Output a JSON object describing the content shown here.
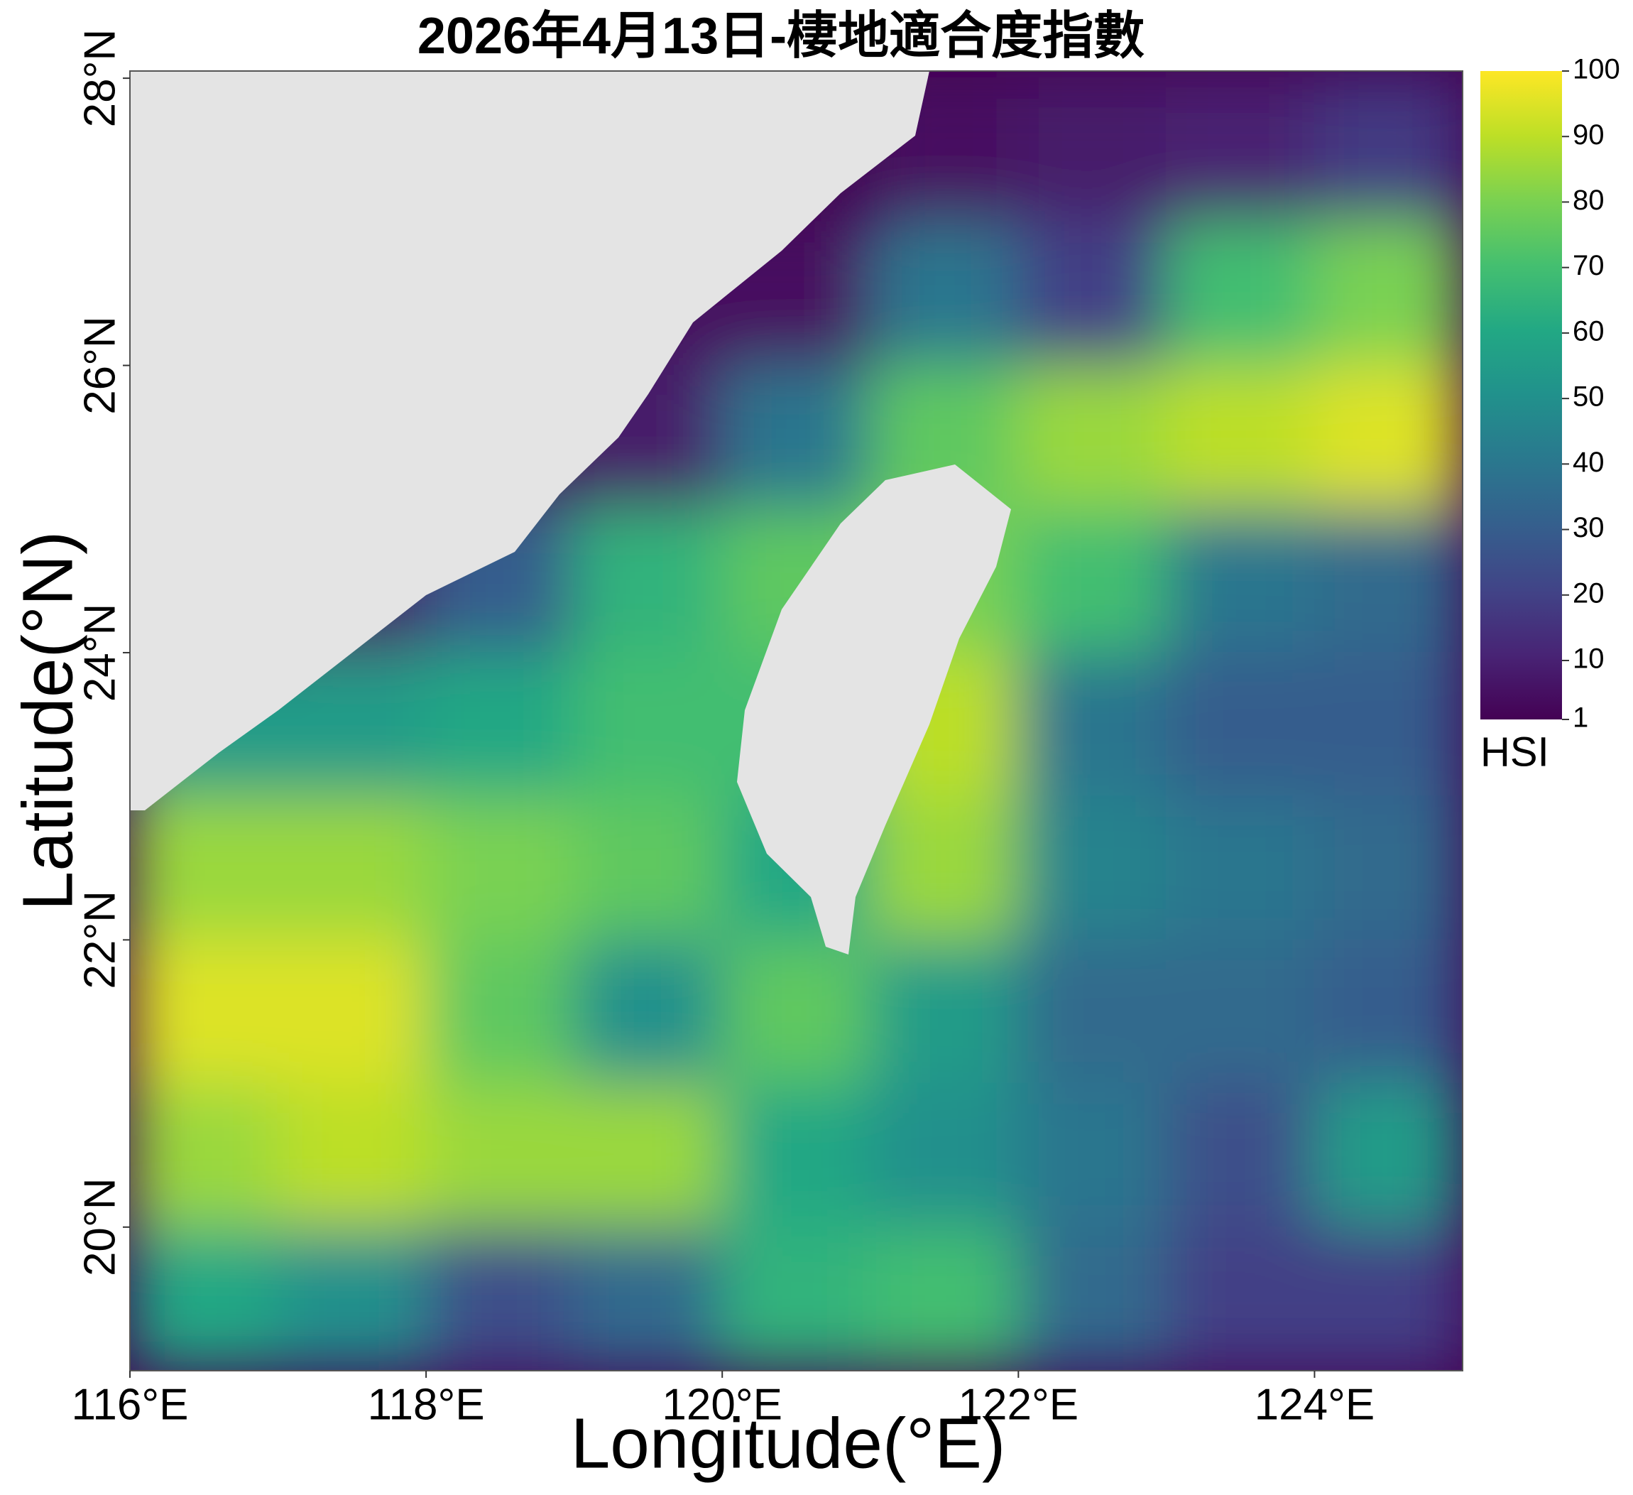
{
  "chart_data": {
    "type": "heatmap",
    "title": "2026年4月13日-棲地適合度指數",
    "x_label": "Longitude(°E)",
    "y_label": "Latitude(°N)",
    "colorbar_label": "HSI",
    "colormap": "viridis",
    "xlim": [
      116,
      125
    ],
    "ylim": [
      19,
      28.05
    ],
    "xticks": [
      {
        "value": 116,
        "label": "116°E"
      },
      {
        "value": 118,
        "label": "118°E"
      },
      {
        "value": 120,
        "label": "120°E"
      },
      {
        "value": 122,
        "label": "122°E"
      },
      {
        "value": 124,
        "label": "124°E"
      }
    ],
    "yticks": [
      {
        "value": 20,
        "label": "20°N"
      },
      {
        "value": 22,
        "label": "22°N"
      },
      {
        "value": 24,
        "label": "24°N"
      },
      {
        "value": 26,
        "label": "26°N"
      },
      {
        "value": 28,
        "label": "28°N"
      }
    ],
    "x": [
      116.5,
      117.5,
      118.5,
      119.5,
      120.5,
      121.5,
      122.5,
      123.5,
      124.5
    ],
    "y": [
      27.5,
      26.5,
      25.5,
      24.5,
      23.5,
      22.5,
      21.5,
      20.5,
      19.5
    ],
    "values": [
      [
        null,
        null,
        null,
        null,
        null,
        5,
        8,
        10,
        18
      ],
      [
        null,
        null,
        null,
        5,
        5,
        40,
        20,
        70,
        80
      ],
      [
        null,
        null,
        5,
        8,
        40,
        75,
        85,
        90,
        95
      ],
      [
        null,
        8,
        30,
        65,
        75,
        80,
        70,
        40,
        35
      ],
      [
        55,
        55,
        60,
        70,
        70,
        90,
        40,
        30,
        30
      ],
      [
        85,
        85,
        80,
        75,
        60,
        85,
        45,
        40,
        35
      ],
      [
        95,
        95,
        75,
        50,
        75,
        55,
        35,
        35,
        30
      ],
      [
        85,
        90,
        85,
        85,
        60,
        50,
        40,
        25,
        55
      ],
      [
        60,
        50,
        25,
        35,
        65,
        70,
        35,
        20,
        20
      ]
    ],
    "clim": [
      1,
      100
    ],
    "cticks": [
      1,
      10,
      20,
      30,
      40,
      50,
      60,
      70,
      80,
      90,
      100
    ]
  }
}
